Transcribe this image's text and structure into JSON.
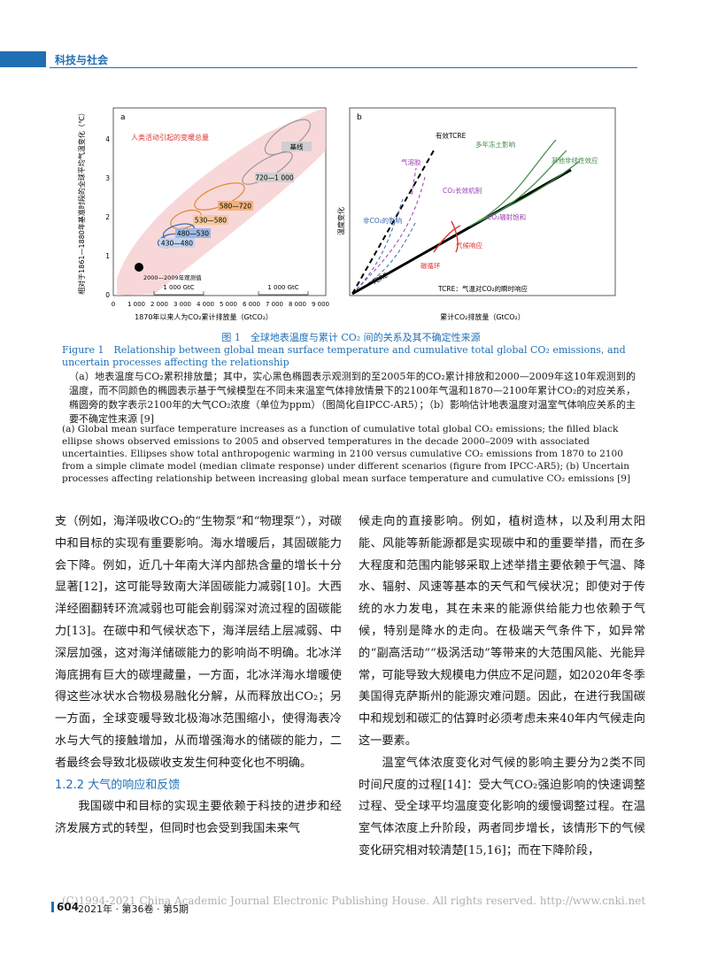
{
  "header": {
    "section": "科技与社会"
  },
  "figure": {
    "panel_a": {
      "label": "a",
      "y_axis_label": "相对于1861—1880年基准时段的全球平均气温变化（℃）",
      "x_axis_label": "1870年以来人为CO₂累计排放量（GtCO₂）",
      "y_ticks": [
        "0",
        "1",
        "2",
        "3",
        "4"
      ],
      "x_ticks": [
        "0",
        "1 000",
        "2 000",
        "3 000",
        "4 000",
        "5 000",
        "6 000",
        "7 000",
        "8 000",
        "9 000"
      ],
      "band_label": "人类活动引起的变暖总量",
      "ellipse_labels": [
        "基线",
        "720—1 000",
        "580—720",
        "530—580",
        "480—530",
        "430—480"
      ],
      "observed_label": "2000—2009年观测值",
      "bracket_labels": [
        "1 000 GtC",
        "1 000 GtC"
      ]
    },
    "panel_b": {
      "label": "b",
      "y_axis_label": "温度变化",
      "x_axis_label": "累计CO₂排放量（GtCO₂）",
      "labels": [
        "有效TCRE",
        "多年冻土影响",
        "气溶胶",
        "其他非线性效应",
        "CO₂长效机制",
        "非CO₂的影响",
        "CO₂辐射饱和",
        "气候响应",
        "碳循环",
        "TCRE"
      ],
      "legend": "TCRE：气温对CO₂的瞬时响应"
    },
    "title_cn": "图 1　全球地表温度与累计 CO₂ 间的关系及其不确定性来源",
    "title_en": "Figure 1　Relationship between global mean surface temperature and cumulative total global CO₂ emissions, and uncertain processes affecting the relationship",
    "caption_cn": "（a）地表温度与CO₂累积排放量；其中，实心黑色椭圆表示观测到的至2005年的CO₂累计排放和2000—2009年这10年观测到的温度，而不同颜色的椭圆表示基于气候模型在不同未来温室气体排放情景下的2100年气温和1870—2100年累计CO₂的对应关系，椭圆旁的数字表示2100年的大气CO₂浓度（单位为ppm）（图简化自IPCC-AR5）；（b）影响估计地表温度对温室气体响应关系的主要不确定性来源 [9]",
    "caption_en": "(a) Global mean surface temperature increases as a function of cumulative total global CO₂ emissions; the filled black ellipse shows observed emissions to 2005 and observed temperatures in the decade 2000–2009 with associated uncertainties. Ellipses show total anthropogenic warming in 2100 versus cumulative CO₂ emissions from 1870 to 2100 from a simple climate model (median climate response) under different scenarios (figure from IPCC-AR5); (b) Uncertain processes affecting relationship between increasing global mean surface temperature and cumulative CO₂ emissions [9]"
  },
  "body": {
    "left_p1": "支（例如，海洋吸收CO₂的“生物泵”和“物理泵”），对碳中和目标的实现有重要影响。海水增暖后，其固碳能力会下降。例如，近几十年南大洋内部热含量的增长十分显著[12]，这可能导致南大洋固碳能力减弱[10]。大西洋经圈翻转环流减弱也可能会削弱深对流过程的固碳能力[13]。在碳中和气候状态下，海洋层结上层减弱、中深层加强，这对海洋储碳能力的影响尚不明确。北冰洋海底拥有巨大的碳埋藏量，一方面，北冰洋海水增暖使得这些冰状水合物极易融化分解，从而释放出CO₂；另一方面，全球变暖导致北极海冰范围缩小，使得海表冷水与大气的接触增加，从而增强海水的储碳的能力，二者最终会导致北极碳收支发生何种变化也不明确。",
    "left_section": "1.2.2 大气的响应和反馈",
    "left_p2": "我国碳中和目标的实现主要依赖于科技的进步和经济发展方式的转型，但同时也会受到我国未来气",
    "right_p1": "候走向的直接影响。例如，植树造林，以及利用太阳能、风能等新能源都是实现碳中和的重要举措，而在多大程度和范围内能够采取上述举措主要依赖于气温、降水、辐射、风速等基本的天气和气候状况；即使对于传统的水力发电，其在未来的能源供给能力也依赖于气候，特别是降水的走向。在极端天气条件下，如异常的“副高活动”“极涡活动”等带来的大范围风能、光能异常，可能导致大规模电力供应不足问题，如2020年冬季美国得克萨斯州的能源灾难问题。因此，在进行我国碳中和规划和碳汇的估算时必须考虑未来40年内气候走向这一要素。",
    "right_p2": "温室气体浓度变化对气候的影响主要分为2类不同时间尺度的过程[14]：受大气CO₂强迫影响的快速调整过程、受全球平均温度变化影响的缓慢调整过程。在温室气体浓度上升阶段，两者同步增长，该情形下的气候变化研究相对较清楚[15,16]；而在下降阶段，"
  },
  "footer": {
    "watermark": "(C)1994-2021 China Academic Journal Electronic Publishing House. All rights reserved.    http://www.cnki.net",
    "page": "604",
    "issue": "2021年 · 第36卷 · 第5期"
  }
}
